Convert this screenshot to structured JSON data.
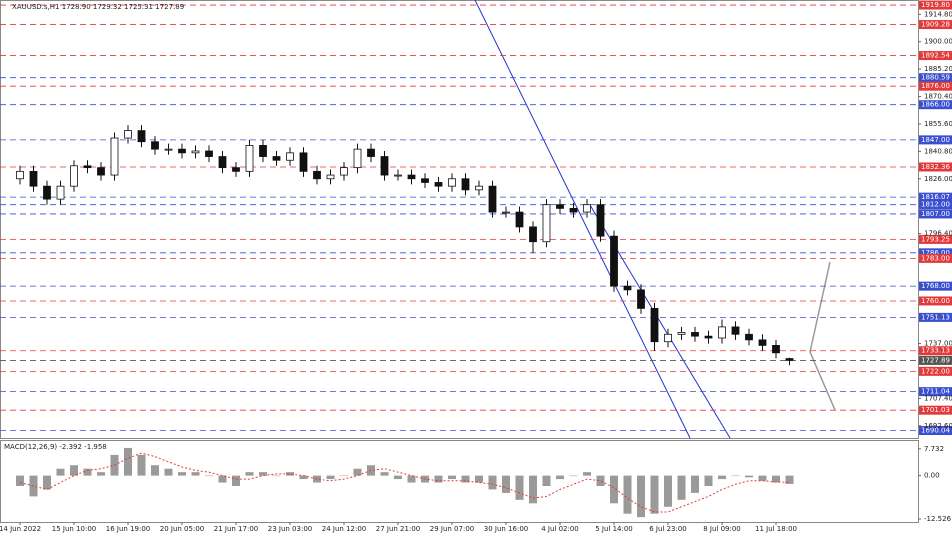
{
  "chart_data": [
    {
      "type": "candlestick",
      "title": "XAUUSD.s,H1  1728.90 1729.32 1725.31 1727.89",
      "categories": [
        "14 Jun 2022",
        null,
        null,
        null,
        "15 Jun 10:00",
        null,
        null,
        null,
        "16 Jun 19:00",
        null,
        null,
        null,
        "20 Jun 05:00",
        null,
        null,
        null,
        "21 Jun 17:00",
        null,
        null,
        null,
        "23 Jun 03:00",
        null,
        null,
        null,
        "24 Jun 12:00",
        null,
        null,
        null,
        "27 Jun 21:00",
        null,
        null,
        null,
        "29 Jun 07:00",
        null,
        null,
        null,
        "30 Jun 16:00",
        null,
        null,
        null,
        "4 Jul 02:00",
        null,
        null,
        null,
        "5 Jul 14:00",
        null,
        null,
        null,
        "6 Jul 23:00",
        null,
        null,
        null,
        "8 Jul 09:00",
        null,
        null,
        null,
        "11 Jul 18:00",
        null
      ],
      "open": [
        1826,
        1830,
        1822,
        1815,
        1822,
        1833,
        1832,
        1828,
        1848,
        1852,
        1846,
        1842,
        1842,
        1840,
        1841,
        1838,
        1832,
        1830,
        1844,
        1838,
        1836,
        1840,
        1830,
        1826,
        1828,
        1832,
        1842,
        1838,
        1828,
        1828,
        1826,
        1824,
        1822,
        1826,
        1820,
        1822,
        1808,
        1808,
        1800,
        1792,
        1812,
        1810,
        1808,
        1812,
        1795,
        1768,
        1766,
        1756,
        1738,
        1742,
        1743,
        1741,
        1740,
        1746,
        1742,
        1739,
        1736,
        1728.9
      ],
      "high": [
        1833,
        1833,
        1825,
        1825,
        1836,
        1836,
        1835,
        1851,
        1855,
        1855,
        1849,
        1845,
        1845,
        1844,
        1844,
        1841,
        1835,
        1847,
        1847,
        1841,
        1843,
        1843,
        1833,
        1831,
        1835,
        1845,
        1845,
        1841,
        1831,
        1831,
        1829,
        1827,
        1829,
        1829,
        1825,
        1825,
        1811,
        1811,
        1803,
        1815,
        1815,
        1813,
        1815,
        1815,
        1798,
        1771,
        1769,
        1759,
        1745,
        1746,
        1746,
        1744,
        1750,
        1749,
        1745,
        1742,
        1739,
        1729.32
      ],
      "low": [
        1823,
        1819,
        1812,
        1812,
        1819,
        1829,
        1825,
        1825,
        1845,
        1843,
        1839,
        1839,
        1837,
        1837,
        1835,
        1829,
        1827,
        1827,
        1835,
        1833,
        1833,
        1827,
        1823,
        1823,
        1825,
        1829,
        1835,
        1825,
        1825,
        1823,
        1821,
        1819,
        1819,
        1817,
        1817,
        1805,
        1805,
        1797,
        1786,
        1789,
        1807,
        1805,
        1805,
        1792,
        1765,
        1763,
        1753,
        1733,
        1735,
        1739,
        1738,
        1737,
        1737,
        1739,
        1736,
        1733,
        1729,
        1725.31
      ],
      "close": [
        1830,
        1822,
        1815,
        1822,
        1833,
        1832,
        1828,
        1848,
        1852,
        1846,
        1842,
        1842,
        1840,
        1841,
        1838,
        1832,
        1830,
        1844,
        1838,
        1836,
        1840,
        1830,
        1826,
        1828,
        1832,
        1842,
        1838,
        1828,
        1828,
        1826,
        1824,
        1822,
        1826,
        1820,
        1822,
        1808,
        1808,
        1800,
        1792,
        1812,
        1810,
        1808,
        1812,
        1795,
        1768,
        1766,
        1756,
        1738,
        1742,
        1743,
        1741,
        1740,
        1746,
        1742,
        1739,
        1736,
        1732,
        1727.89
      ],
      "ylim": [
        1686,
        1922
      ],
      "yticks": [
        {
          "value": 1914.8,
          "label": "1914.80"
        },
        {
          "value": 1900,
          "label": "1900.00"
        },
        {
          "value": 1885.2,
          "label": "1885.20"
        },
        {
          "value": 1870.4,
          "label": "1870.40"
        },
        {
          "value": 1855.6,
          "label": "1855.60"
        },
        {
          "value": 1840.8,
          "label": "1840.80"
        },
        {
          "value": 1826,
          "label": "1826.00"
        },
        {
          "value": 1796.4,
          "label": "1796.40"
        },
        {
          "value": 1737,
          "label": "1737.00"
        },
        {
          "value": 1707.4,
          "label": "1707.40"
        },
        {
          "value": 1692.6,
          "label": "1692.60"
        }
      ],
      "levels": [
        {
          "value": 1919.8,
          "label": "1919.80",
          "color": "#e23a3a"
        },
        {
          "value": 1909.28,
          "label": "1909.28",
          "color": "#e23a3a"
        },
        {
          "value": 1892.54,
          "label": "1892.54",
          "color": "#e23a3a"
        },
        {
          "value": 1880.59,
          "label": "1880.59",
          "color": "#3a4fd0"
        },
        {
          "value": 1876,
          "label": "1876.00",
          "color": "#e23a3a"
        },
        {
          "value": 1866,
          "label": "1866.00",
          "color": "#3a4fd0"
        },
        {
          "value": 1847,
          "label": "1847.00",
          "color": "#3a4fd0"
        },
        {
          "value": 1832.36,
          "label": "1832.36",
          "color": "#e23a3a"
        },
        {
          "value": 1816.07,
          "label": "1816.07",
          "color": "#3a4fd0"
        },
        {
          "value": 1812,
          "label": "1812.00",
          "color": "#3a4fd0"
        },
        {
          "value": 1807,
          "label": "1807.00",
          "color": "#3a4fd0"
        },
        {
          "value": 1793.25,
          "label": "1793.25",
          "color": "#e23a3a"
        },
        {
          "value": 1786,
          "label": "1786.00",
          "color": "#3a4fd0"
        },
        {
          "value": 1783,
          "label": "1783.00",
          "color": "#e23a3a"
        },
        {
          "value": 1768,
          "label": "1768.00",
          "color": "#3a4fd0"
        },
        {
          "value": 1760,
          "label": "1760.00",
          "color": "#e23a3a"
        },
        {
          "value": 1751.13,
          "label": "1751.13",
          "color": "#3a4fd0"
        },
        {
          "value": 1733.13,
          "label": "1733.13",
          "color": "#e23a3a"
        },
        {
          "value": 1727.89,
          "label": "1727.89",
          "color": "#555555"
        },
        {
          "value": 1722,
          "label": "1722.00",
          "color": "#e23a3a"
        },
        {
          "value": 1711.04,
          "label": "1711.04",
          "color": "#3a4fd0"
        },
        {
          "value": 1701.03,
          "label": "1701.03",
          "color": "#e23a3a"
        },
        {
          "value": 1690.04,
          "label": "1690.04",
          "color": "#3a4fd0"
        }
      ]
    },
    {
      "type": "macd",
      "title": "MACD(12,26,9) -2.392 -1.958",
      "values": [
        -3,
        -6,
        -4,
        2,
        3,
        2,
        1,
        6,
        8,
        6,
        3,
        2,
        1,
        1,
        0,
        -2,
        -3,
        1,
        1,
        0,
        1,
        -1,
        -2,
        -1,
        0,
        2,
        3,
        1,
        -1,
        -2,
        -2,
        -2,
        -1,
        -2,
        -2,
        -4,
        -5,
        -7,
        -8,
        -3,
        -1,
        0,
        1,
        -3,
        -8,
        -11,
        -12,
        -11,
        -9,
        -7,
        -5,
        -3,
        -1,
        0,
        -0.5,
        -1.5,
        -2,
        -2.392
      ],
      "signal": [
        -2,
        -3,
        -4,
        -2,
        0,
        1.5,
        2,
        3,
        5,
        6.5,
        5.5,
        4,
        2.5,
        1.5,
        1,
        0,
        -1,
        -1,
        0,
        0.5,
        0.5,
        0,
        -1,
        -1.5,
        -1,
        0,
        1.5,
        2,
        1,
        0,
        -1,
        -1.5,
        -1.5,
        -1.5,
        -2,
        -2.5,
        -3.5,
        -5,
        -6.5,
        -6,
        -4,
        -2.5,
        -1,
        -1.5,
        -3.5,
        -6.5,
        -9,
        -10.5,
        -10.5,
        -9,
        -7.5,
        -6,
        -4,
        -2.5,
        -1.5,
        -1.5,
        -1.8,
        -1.958
      ],
      "ylim": [
        -13.4,
        10
      ],
      "yticks": [
        7.732,
        {
          "value": 0,
          "label": "0.00"
        },
        -12.526
      ]
    }
  ]
}
